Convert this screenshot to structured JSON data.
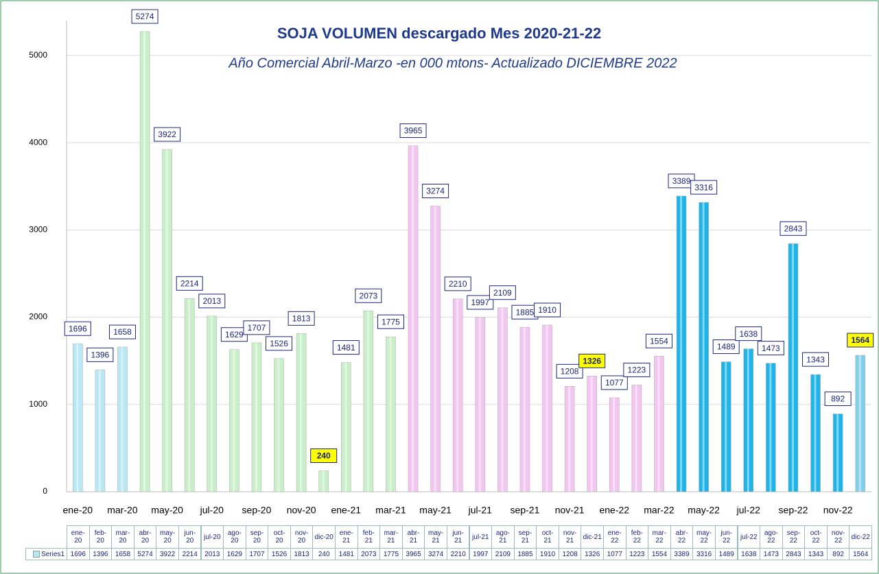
{
  "chart_data": {
    "type": "bar",
    "title": "SOJA VOLUMEN   descargado Mes 2020-21-22",
    "subtitle": "Año Comercial Abril-Marzo -en 000 mtons- Actualizado DICIEMBRE  2022",
    "categories": [
      "ene-20",
      "feb-20",
      "mar-20",
      "abr-20",
      "may-20",
      "jun-20",
      "jul-20",
      "ago-20",
      "sep-20",
      "oct-20",
      "nov-20",
      "dic-20",
      "ene-21",
      "feb-21",
      "mar-21",
      "abr-21",
      "may-21",
      "jun-21",
      "jul-21",
      "ago-21",
      "sep-21",
      "oct-21",
      "nov-21",
      "dic-21",
      "ene-22",
      "feb-22",
      "mar-22",
      "abr-22",
      "may-22",
      "jun-22",
      "jul-22",
      "ago-22",
      "sep-22",
      "oct-22",
      "nov-22",
      "dic-22"
    ],
    "series": [
      {
        "name": "Series1",
        "values": [
          1696,
          1396,
          1658,
          5274,
          3922,
          2214,
          2013,
          1629,
          1707,
          1526,
          1813,
          240,
          1481,
          2073,
          1775,
          3965,
          3274,
          2210,
          1997,
          2109,
          1885,
          1910,
          1208,
          1326,
          1077,
          1223,
          1554,
          3389,
          3316,
          1489,
          1638,
          1473,
          2843,
          1343,
          892,
          1564
        ],
        "colors": [
          "#b9e8f5",
          "#b9e8f5",
          "#b9e8f5",
          "#c9efc9",
          "#c9efc9",
          "#c9efc9",
          "#c9efc9",
          "#c9efc9",
          "#c9efc9",
          "#c9efc9",
          "#c9efc9",
          "#c9efc9",
          "#c9efc9",
          "#c9efc9",
          "#c9efc9",
          "#f2c6f0",
          "#f2c6f0",
          "#f2c6f0",
          "#f2c6f0",
          "#f2c6f0",
          "#f2c6f0",
          "#f2c6f0",
          "#f2c6f0",
          "#f2c6f0",
          "#f2c6f0",
          "#f2c6f0",
          "#f2c6f0",
          "#1fb4e8",
          "#1fb4e8",
          "#1fb4e8",
          "#1fb4e8",
          "#1fb4e8",
          "#1fb4e8",
          "#1fb4e8",
          "#1fb4e8",
          "#7fd0ea"
        ],
        "label_fill": [
          "#ffffff",
          "#ffffff",
          "#ffffff",
          "#ffffff",
          "#ffffff",
          "#ffffff",
          "#ffffff",
          "#ffffff",
          "#ffffff",
          "#ffffff",
          "#ffffff",
          "#ffff00",
          "#ffffff",
          "#ffffff",
          "#ffffff",
          "#ffffff",
          "#ffffff",
          "#ffffff",
          "#ffffff",
          "#ffffff",
          "#ffffff",
          "#ffffff",
          "#ffffff",
          "#ffff00",
          "#ffffff",
          "#ffffff",
          "#ffffff",
          "#ffffff",
          "#ffffff",
          "#ffffff",
          "#ffffff",
          "#ffffff",
          "#ffffff",
          "#ffffff",
          "#ffffff",
          "#ffff00"
        ]
      }
    ],
    "ylim": [
      0,
      5400
    ],
    "yticks": [
      0,
      1000,
      2000,
      3000,
      4000,
      5000
    ],
    "grid": true
  }
}
